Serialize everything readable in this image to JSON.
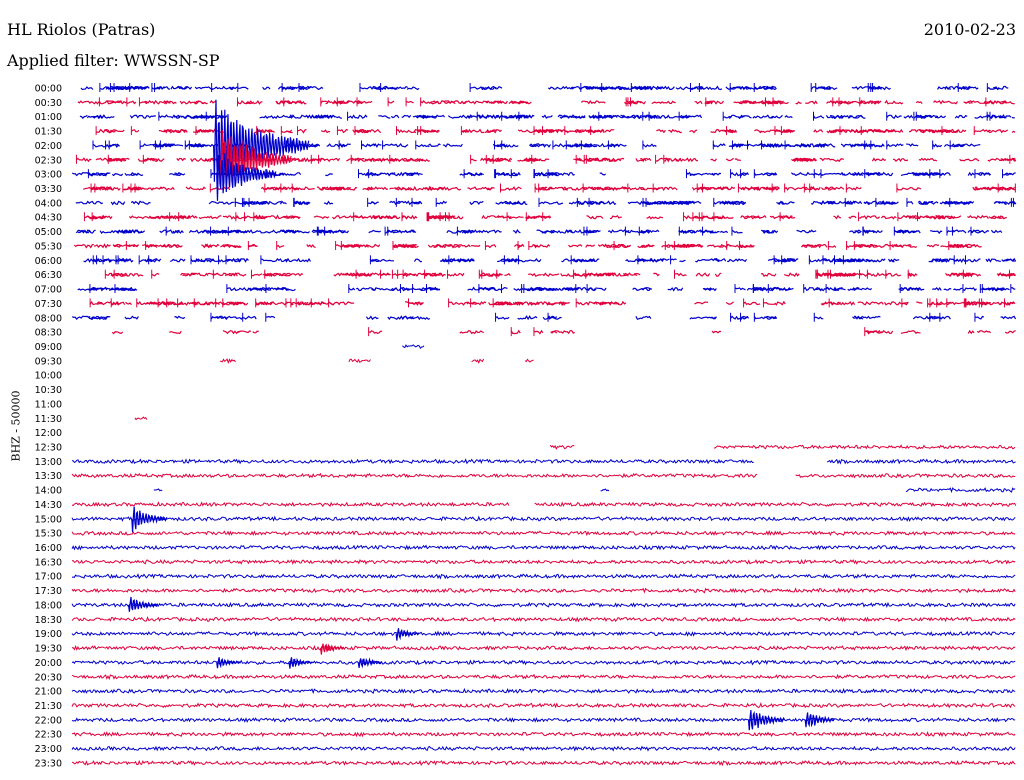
{
  "header": {
    "station": "HL Riolos (Patras)",
    "date": "2010-02-23",
    "filter": "Applied filter: WWSSN-SP"
  },
  "axis_label": "BHZ - 50000",
  "colors": {
    "odd": "#0000cc",
    "even": "#e0003c"
  },
  "chart_data": {
    "type": "line",
    "title": "HL Riolos (Patras)",
    "subtitle": "Applied filter: WWSSN-SP",
    "ylabel": "BHZ - 50000",
    "xlabel": "",
    "rows": [
      "00:00",
      "00:30",
      "01:00",
      "01:30",
      "02:00",
      "02:30",
      "03:00",
      "03:30",
      "04:00",
      "04:30",
      "05:00",
      "05:30",
      "06:00",
      "06:30",
      "07:00",
      "07:30",
      "08:00",
      "08:30",
      "09:00",
      "09:30",
      "10:00",
      "10:30",
      "11:00",
      "11:30",
      "12:00",
      "12:30",
      "13:00",
      "13:30",
      "14:00",
      "14:30",
      "15:00",
      "15:30",
      "16:00",
      "16:30",
      "17:00",
      "17:30",
      "18:00",
      "18:30",
      "19:00",
      "19:30",
      "20:00",
      "20:30",
      "21:00",
      "21:30",
      "22:00",
      "22:30",
      "23:00",
      "23:30"
    ],
    "row_minutes": 30,
    "grid": false,
    "x_range_minutes": [
      0,
      30
    ],
    "segments": {
      "00:00": [
        [
          0,
          30,
          0.25
        ]
      ],
      "00:30": [
        [
          0,
          30,
          0.25
        ]
      ],
      "01:00": [
        [
          0,
          30,
          0.25
        ]
      ],
      "01:30": [
        [
          0,
          30,
          0.25
        ]
      ],
      "02:00": [
        [
          0,
          30,
          0.25
        ]
      ],
      "02:30": [
        [
          0,
          30,
          0.25
        ]
      ],
      "03:00": [
        [
          0,
          30,
          0.25
        ]
      ],
      "03:30": [
        [
          0,
          30,
          0.25
        ]
      ],
      "04:00": [
        [
          0,
          30,
          0.25
        ]
      ],
      "04:30": [
        [
          0,
          30,
          0.25
        ]
      ],
      "05:00": [
        [
          0,
          30,
          0.25
        ]
      ],
      "05:30": [
        [
          0,
          30,
          0.25
        ]
      ],
      "06:00": [
        [
          0,
          30,
          0.25
        ]
      ],
      "06:30": [
        [
          0,
          30,
          0.25
        ]
      ],
      "07:00": [
        [
          0,
          30,
          0.25
        ]
      ],
      "07:30": [
        [
          0,
          30,
          0.25
        ]
      ],
      "08:00": [
        [
          0,
          30,
          0.12
        ]
      ],
      "08:30": [
        [
          0,
          30,
          0.07
        ]
      ],
      "09:00": [
        [
          10.5,
          11.2,
          1
        ]
      ],
      "09:30": [
        [
          4.7,
          5.2,
          1
        ],
        [
          8.8,
          9.5,
          1
        ],
        [
          12.7,
          13.1,
          1
        ],
        [
          14.4,
          14.7,
          1
        ]
      ],
      "10:00": [],
      "10:30": [],
      "11:00": [],
      "11:30": [
        [
          2.0,
          2.4,
          1
        ]
      ],
      "12:00": [],
      "12:30": [
        [
          15.2,
          16.0,
          1
        ],
        [
          20.4,
          30,
          1
        ]
      ],
      "13:00": [
        [
          0,
          5.0,
          1
        ],
        [
          5.0,
          21.7,
          1
        ],
        [
          24.0,
          30,
          1
        ]
      ],
      "13:30": [
        [
          0,
          21.8,
          1
        ],
        [
          23.0,
          30,
          1
        ]
      ],
      "14:00": [
        [
          2.6,
          2.9,
          1
        ],
        [
          16.8,
          17.1,
          1
        ],
        [
          26.5,
          30,
          1
        ]
      ],
      "14:30": [
        [
          0,
          13.9,
          1
        ],
        [
          14.7,
          30,
          1
        ]
      ],
      "15:00": [
        [
          0,
          30,
          1
        ]
      ],
      "15:30": [
        [
          0,
          30,
          1
        ]
      ],
      "16:00": [
        [
          0,
          30,
          1
        ]
      ],
      "16:30": [
        [
          0,
          30,
          1
        ]
      ],
      "17:00": [
        [
          0,
          30,
          1
        ]
      ],
      "17:30": [
        [
          0,
          30,
          1
        ]
      ],
      "18:00": [
        [
          0,
          30,
          1
        ]
      ],
      "18:30": [
        [
          0,
          30,
          1
        ]
      ],
      "19:00": [
        [
          0,
          30,
          1
        ]
      ],
      "19:30": [
        [
          0,
          30,
          1
        ]
      ],
      "20:00": [
        [
          0,
          30,
          1
        ]
      ],
      "20:30": [
        [
          0,
          30,
          1
        ]
      ],
      "21:00": [
        [
          0,
          30,
          1
        ]
      ],
      "21:30": [
        [
          0,
          30,
          1
        ]
      ],
      "22:00": [
        [
          0,
          30,
          1
        ]
      ],
      "22:30": [
        [
          0,
          30,
          1
        ]
      ],
      "23:00": [
        [
          0,
          30,
          1
        ]
      ],
      "23:30": [
        [
          0,
          30,
          1
        ]
      ]
    },
    "events": [
      {
        "row": "02:00",
        "t": 4.5,
        "amp": 14
      },
      {
        "row": "02:30",
        "t": 4.7,
        "amp": 10
      },
      {
        "row": "03:00",
        "t": 4.6,
        "amp": 8
      },
      {
        "row": "15:00",
        "t": 1.9,
        "amp": 4
      },
      {
        "row": "18:00",
        "t": 1.8,
        "amp": 3
      },
      {
        "row": "19:00",
        "t": 10.3,
        "amp": 2
      },
      {
        "row": "19:30",
        "t": 7.9,
        "amp": 2
      },
      {
        "row": "20:00",
        "t": 4.6,
        "amp": 2
      },
      {
        "row": "20:00",
        "t": 6.9,
        "amp": 2
      },
      {
        "row": "20:00",
        "t": 9.1,
        "amp": 2
      },
      {
        "row": "22:00",
        "t": 21.5,
        "amp": 4
      },
      {
        "row": "22:00",
        "t": 23.3,
        "amp": 3
      }
    ]
  }
}
